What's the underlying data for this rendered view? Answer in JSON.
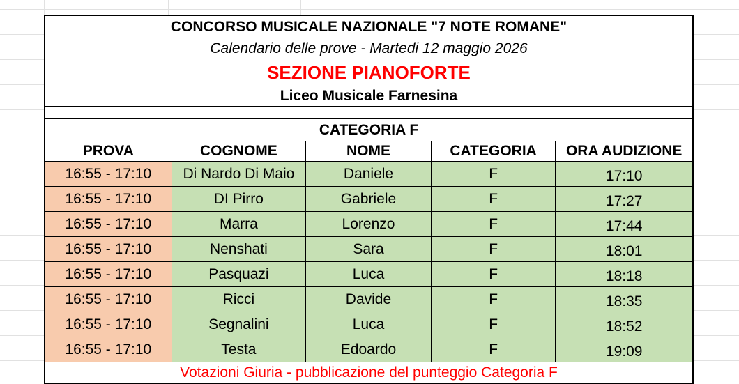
{
  "header": {
    "title": "CONCORSO MUSICALE NAZIONALE \"7 NOTE ROMANE\"",
    "subtitle": "Calendario delle prove - Martedi 12 maggio 2026",
    "section": "SEZIONE PIANOFORTE",
    "venue": "Liceo Musicale Farnesina"
  },
  "category_title": "CATEGORIA F",
  "columns": [
    "PROVA",
    "COGNOME",
    "NOME",
    "CATEGORIA",
    "ORA AUDIZIONE"
  ],
  "rows": [
    [
      "16:55 - 17:10",
      "Di Nardo Di Maio",
      "Daniele",
      "F",
      "17:10"
    ],
    [
      "16:55 - 17:10",
      "DI Pirro",
      "Gabriele",
      "F",
      "17:27"
    ],
    [
      "16:55 - 17:10",
      "Marra",
      "Lorenzo",
      "F",
      "17:44"
    ],
    [
      "16:55 - 17:10",
      "Nenshati",
      "Sara",
      "F",
      "18:01"
    ],
    [
      "16:55 - 17:10",
      "Pasquazi",
      "Luca",
      "F",
      "18:18"
    ],
    [
      "16:55 - 17:10",
      "Ricci",
      "Davide",
      "F",
      "18:35"
    ],
    [
      "16:55 - 17:10",
      "Segnalini",
      "Luca",
      "F",
      "18:52"
    ],
    [
      "16:55 - 17:10",
      "Testa",
      "Edoardo",
      "F",
      "19:09"
    ]
  ],
  "footer": "Votazioni Giuria - pubblicazione del punteggio Categoria F",
  "colors": {
    "prova_fill": "#f8cbad",
    "row_fill": "#c6e0b4",
    "accent_red": "#ff0000"
  }
}
